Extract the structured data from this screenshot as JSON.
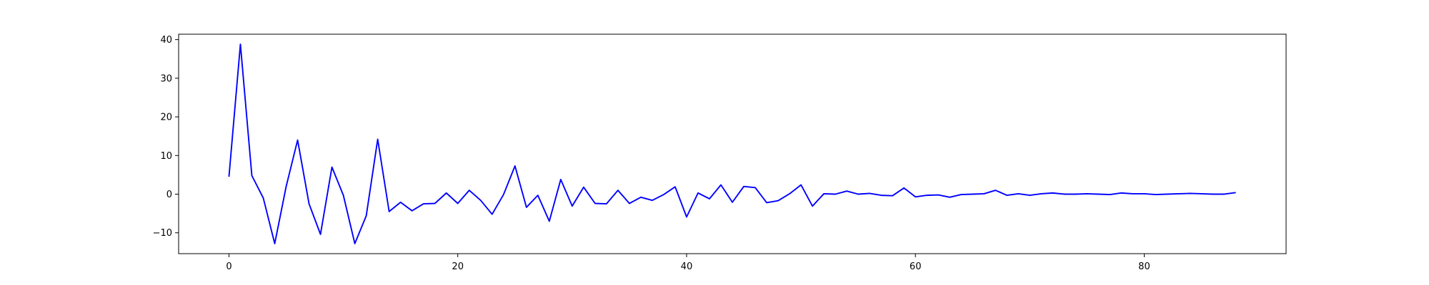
{
  "chart_data": {
    "type": "line",
    "title": "",
    "xlabel": "",
    "ylabel": "",
    "xlim": [
      -4.4,
      92.4
    ],
    "ylim": [
      -15.4,
      41.4
    ],
    "grid": false,
    "x_ticks": [
      0,
      20,
      40,
      60,
      80
    ],
    "y_ticks": [
      -10,
      0,
      10,
      20,
      30,
      40
    ],
    "x_tick_labels": [
      "0",
      "20",
      "40",
      "60",
      "80"
    ],
    "y_tick_labels": [
      "−10",
      "0",
      "10",
      "20",
      "30",
      "40"
    ],
    "series": [
      {
        "color": "#0000ff",
        "x": [
          0,
          1,
          2,
          3,
          4,
          5,
          6,
          7,
          8,
          9,
          10,
          11,
          12,
          13,
          14,
          15,
          16,
          17,
          18,
          19,
          20,
          21,
          22,
          23,
          24,
          25,
          26,
          27,
          28,
          29,
          30,
          31,
          32,
          33,
          34,
          35,
          36,
          37,
          38,
          39,
          40,
          41,
          42,
          43,
          44,
          45,
          46,
          47,
          48,
          49,
          50,
          51,
          52,
          53,
          54,
          55,
          56,
          57,
          58,
          59,
          60,
          61,
          62,
          63,
          64,
          65,
          66,
          67,
          68,
          69,
          70,
          71,
          72,
          73,
          74,
          75,
          76,
          77,
          78,
          79,
          80,
          81,
          82,
          83,
          84,
          85,
          86,
          87,
          88
        ],
        "y": [
          4.5,
          38.8,
          4.8,
          -1.0,
          -12.8,
          2.0,
          14.0,
          -2.5,
          -10.4,
          7.0,
          -0.3,
          -12.8,
          -5.6,
          14.2,
          -4.5,
          -2.1,
          -4.3,
          -2.5,
          -2.4,
          0.3,
          -2.4,
          1.0,
          -1.6,
          -5.2,
          -0.1,
          7.3,
          -3.4,
          -0.3,
          -7.0,
          3.8,
          -3.1,
          1.8,
          -2.4,
          -2.5,
          1.0,
          -2.4,
          -0.8,
          -1.6,
          -0.1,
          1.9,
          -5.9,
          0.3,
          -1.2,
          2.4,
          -2.1,
          2.0,
          1.7,
          -2.2,
          -1.7,
          0.1,
          2.4,
          -3.1,
          0.1,
          0.0,
          0.8,
          0.0,
          0.2,
          -0.3,
          -0.4,
          1.6,
          -0.7,
          -0.3,
          -0.2,
          -0.8,
          -0.1,
          0.0,
          0.1,
          1.0,
          -0.3,
          0.1,
          -0.3,
          0.1,
          0.3,
          0.0,
          0.0,
          0.1,
          0.0,
          -0.1,
          0.3,
          0.1,
          0.1,
          -0.1,
          0.0,
          0.1,
          0.2,
          0.1,
          0.0,
          0.0,
          0.4
        ]
      }
    ]
  }
}
